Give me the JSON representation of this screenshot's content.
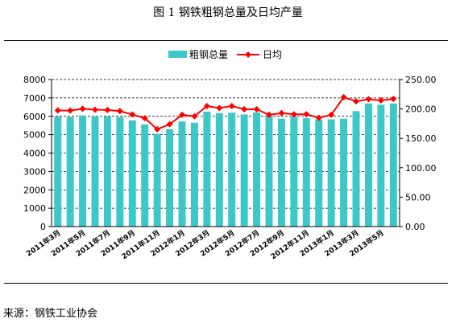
{
  "figure": {
    "title": "图 1  钢铁粗钢总量及日均产量",
    "source": "来源：钢铁工业协会"
  },
  "chart_data": {
    "type": "bar",
    "categories": [
      "2011年3月",
      "2011年4月",
      "2011年5月",
      "2011年6月",
      "2011年7月",
      "2011年8月",
      "2011年9月",
      "2011年10月",
      "2011年11月",
      "2011年12月",
      "2012年1月",
      "2012年2月",
      "2012年3月",
      "2012年4月",
      "2012年5月",
      "2012年6月",
      "2012年7月",
      "2012年8月",
      "2012年9月",
      "2012年10月",
      "2012年11月",
      "2012年12月",
      "2013年1月",
      "2013年2月",
      "2013年3月",
      "2013年4月",
      "2013年5月",
      "2013年6月"
    ],
    "x_tick_labels": [
      "2011年3月",
      "2011年5月",
      "2011年7月",
      "2011年9月",
      "2011年11月",
      "2012年1月",
      "2012年3月",
      "2012年5月",
      "2012年7月",
      "2012年9月",
      "2012年11月",
      "2013年1月",
      "2013年3月",
      "2013年5月"
    ],
    "series": [
      {
        "name": "粗钢总量",
        "type": "bar",
        "axis": "left",
        "color": "#3cc8c8",
        "values": [
          5980,
          5960,
          6050,
          6000,
          5990,
          5960,
          5780,
          5560,
          5050,
          5300,
          5720,
          5650,
          6250,
          6170,
          6200,
          6100,
          6210,
          6000,
          5870,
          5980,
          5900,
          5830,
          5840,
          5870,
          6280,
          6700,
          6630,
          6700
        ]
      },
      {
        "name": "日均",
        "type": "line",
        "axis": "right",
        "color": "#ff0000",
        "values": [
          197.5,
          197.2,
          200.3,
          198.8,
          198.3,
          196.4,
          190.5,
          184.3,
          165.5,
          174.0,
          190.0,
          187.5,
          205.0,
          201.5,
          205.0,
          199.5,
          199.5,
          190.0,
          193.0,
          191.0,
          191.0,
          185.0,
          190.0,
          220.0,
          213.0,
          216.5,
          214.5,
          217.0
        ]
      }
    ],
    "y_left": {
      "min": 0,
      "max": 8000,
      "ticks": [
        "0",
        "1000",
        "2000",
        "3000",
        "4000",
        "5000",
        "6000",
        "7000",
        "8000"
      ]
    },
    "y_right": {
      "min": 0,
      "max": 250,
      "ticks": [
        "0.00",
        "50.00",
        "100.00",
        "150.00",
        "200.00",
        "250.00"
      ]
    },
    "grid": "horizontal-dashed",
    "legend_position": "top-center"
  }
}
